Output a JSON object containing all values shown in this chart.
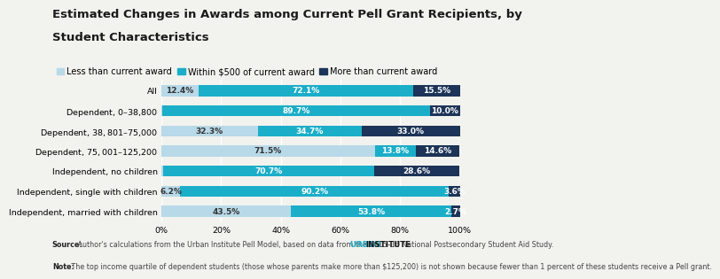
{
  "title_line1": "Estimated Changes in Awards among Current Pell Grant Recipients, by",
  "title_line2": "Student Characteristics",
  "categories": [
    "All",
    "Dependent, $0–$38,800",
    "Dependent, $38,801–$75,000",
    "Dependent, $75,001–$125,200",
    "Independent, no children",
    "Independent, single with children",
    "Independent, married with children"
  ],
  "series": {
    "Less than current award": [
      12.4,
      0.3,
      32.3,
      71.5,
      0.6,
      6.2,
      43.5
    ],
    "Within $500 of current award": [
      72.1,
      89.7,
      34.7,
      13.8,
      70.7,
      90.2,
      53.8
    ],
    "More than current award": [
      15.5,
      10.0,
      33.0,
      14.6,
      28.6,
      3.6,
      2.7
    ]
  },
  "colors": {
    "Less than current award": "#b8d9e8",
    "Within $500 of current award": "#1aaec9",
    "More than current award": "#1c3457"
  },
  "source_bold": "Source:",
  "source_text": " Author's calculations from the Urban Institute Pell Model, based on data from the 2015–16 National Postsecondary Student Aid Study.",
  "note_bold": "Note:",
  "note_text": " The top income quartile of dependent students (those whose parents make more than $125,200) is not shown because fewer than 1 percent of these students receive a Pell grant.",
  "watermark_urban": "URBAN ",
  "watermark_institute": "INSTITUTE",
  "background_color": "#f2f2ee",
  "title_fontsize": 9.5,
  "legend_fontsize": 7.0,
  "bar_fontsize": 6.5,
  "source_fontsize": 5.8,
  "ytick_fontsize": 6.8,
  "xtick_fontsize": 6.8
}
